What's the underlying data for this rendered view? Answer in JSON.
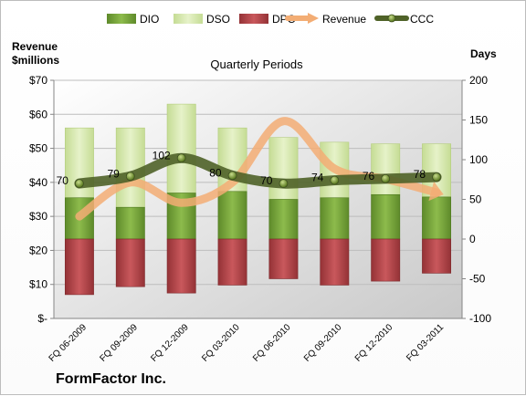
{
  "company": "FormFactor Inc.",
  "chart_data": {
    "type": "bar",
    "title": "Quarterly Periods",
    "left_axis": {
      "label_line1": "Revenue",
      "label_line2": "$millions",
      "range": [
        0,
        70
      ],
      "step": 10,
      "tick_labels": [
        "$-",
        "$10",
        "$20",
        "$30",
        "$40",
        "$50",
        "$60",
        "$70"
      ]
    },
    "right_axis": {
      "label": "Days",
      "range": [
        -100,
        200
      ],
      "step": 50,
      "tick_labels": [
        "-100",
        "-50",
        "0",
        "50",
        "100",
        "150",
        "200"
      ]
    },
    "categories": [
      "FQ 06-2009",
      "FQ 09-2009",
      "FQ 12-2009",
      "FQ 03-2010",
      "FQ 06-2010",
      "FQ 09-2010",
      "FQ 12-2010",
      "FQ 03-2011"
    ],
    "legend": [
      "DIO",
      "DSO",
      "DPO",
      "Revenue",
      "CCC"
    ],
    "legend_position": "top",
    "grid": true,
    "series": [
      {
        "name": "DIO",
        "axis": "right",
        "color": "#7aa83c",
        "values": [
          52,
          40,
          58,
          60,
          50,
          52,
          56,
          53
        ]
      },
      {
        "name": "DSO",
        "axis": "right",
        "color": "#d8ebb0",
        "values": [
          88,
          100,
          112,
          80,
          78,
          70,
          64,
          67
        ]
      },
      {
        "name": "DPO",
        "axis": "right",
        "color": "#b94a4e",
        "values": [
          -70,
          -60,
          -68,
          -58,
          -50,
          -58,
          -53,
          -43
        ]
      },
      {
        "name": "Revenue",
        "axis": "left",
        "color": "#f3ad74",
        "values": [
          30,
          40,
          34,
          40,
          58,
          44,
          41,
          37
        ]
      },
      {
        "name": "CCC",
        "axis": "right",
        "color": "#4f6228",
        "values": [
          70,
          79,
          102,
          80,
          70,
          74,
          76,
          78
        ]
      }
    ],
    "ccc_labels": [
      "70",
      "79",
      "102",
      "80",
      "70",
      "74",
      "76",
      "78"
    ]
  }
}
